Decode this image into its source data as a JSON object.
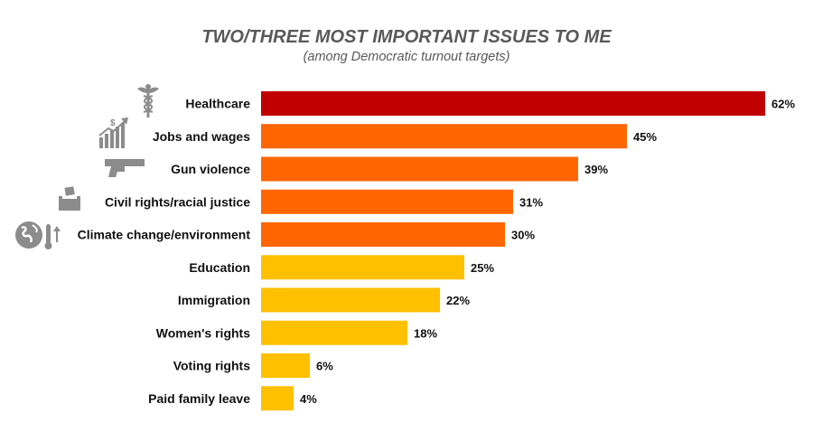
{
  "chart_data": {
    "type": "bar",
    "orientation": "horizontal",
    "title": "TWO/THREE MOST IMPORTANT ISSUES TO ME",
    "subtitle": "(among Democratic turnout targets)",
    "categories": [
      "Healthcare",
      "Jobs and wages",
      "Gun violence",
      "Civil rights/racial justice",
      "Climate change/environment",
      "Education",
      "Immigration",
      "Women's rights",
      "Voting rights",
      "Paid family leave"
    ],
    "values": [
      62,
      45,
      39,
      31,
      30,
      25,
      22,
      18,
      6,
      4
    ],
    "value_labels": [
      "62%",
      "45%",
      "39%",
      "31%",
      "30%",
      "25%",
      "22%",
      "18%",
      "6%",
      "4%"
    ],
    "bar_colors": [
      "#C00000",
      "#FF6600",
      "#FF6600",
      "#FF6600",
      "#FF6600",
      "#FFC000",
      "#FFC000",
      "#FFC000",
      "#FFC000",
      "#FFC000"
    ],
    "icons": [
      "caduceus-icon",
      "growth-chart-icon",
      "handgun-icon",
      "ballot-box-icon",
      "globe-thermometer-icon",
      null,
      null,
      null,
      null,
      null
    ],
    "xlim": [
      0,
      62
    ],
    "grid": false,
    "legend": "none"
  }
}
